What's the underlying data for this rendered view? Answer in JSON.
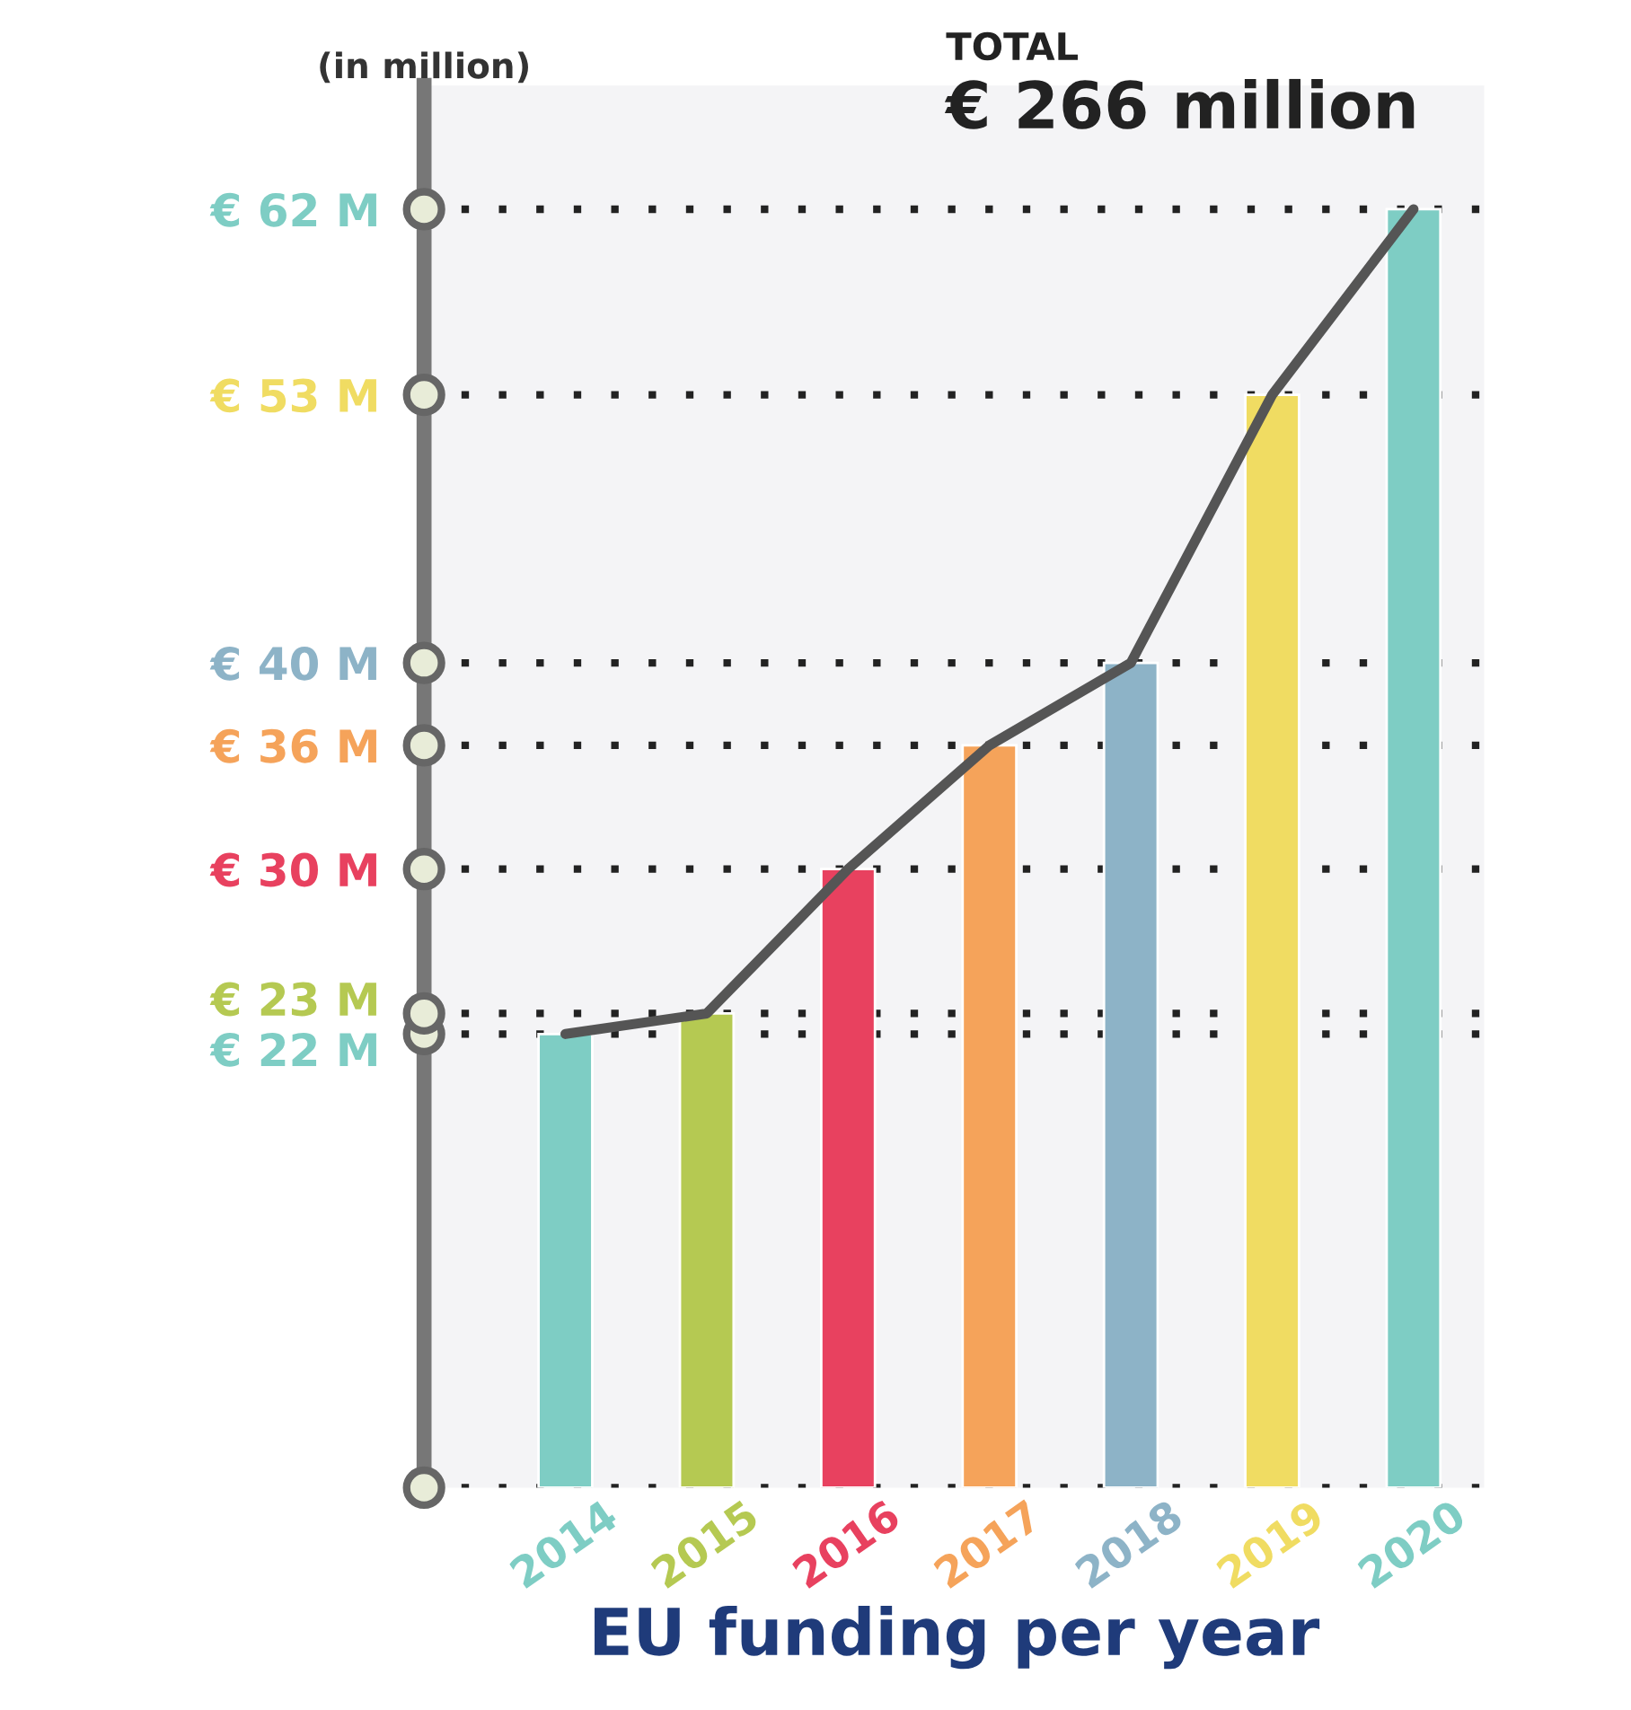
{
  "chart_data": {
    "type": "bar",
    "title": "EU funding per year",
    "ylabel": "(in million)",
    "annotations": [
      "TOTAL",
      "€ 266 million"
    ],
    "categories": [
      "2014",
      "2015",
      "2016",
      "2017",
      "2018",
      "2019",
      "2020"
    ],
    "series": [
      {
        "values": [
          22,
          23,
          30,
          36,
          40,
          53,
          62
        ],
        "colors": [
          "#7ecdc4",
          "#b5c952",
          "#e8415f",
          "#f5a35a",
          "#8db3c7",
          "#f0dc62",
          "#7ecdc4"
        ]
      },
      {
        "type": "line",
        "values": [
          22,
          23,
          30,
          36,
          40,
          53,
          62
        ],
        "color": "#555555"
      }
    ],
    "ylim": [
      0,
      68
    ],
    "yticks": [
      {
        "value": 0,
        "label": null
      },
      {
        "value": 22,
        "label": "€ 22 M"
      },
      {
        "value": 23,
        "label": "€ 23 M"
      },
      {
        "value": 30,
        "label": "€ 30 M"
      },
      {
        "value": 36,
        "label": "€ 36 M"
      },
      {
        "value": 40,
        "label": "€ 40 M"
      },
      {
        "value": 53,
        "label": "€ 53 M"
      },
      {
        "value": 62,
        "label": "€ 62 M"
      }
    ],
    "grid": "y",
    "legend": false,
    "marker": "none",
    "line_style": "solid"
  }
}
